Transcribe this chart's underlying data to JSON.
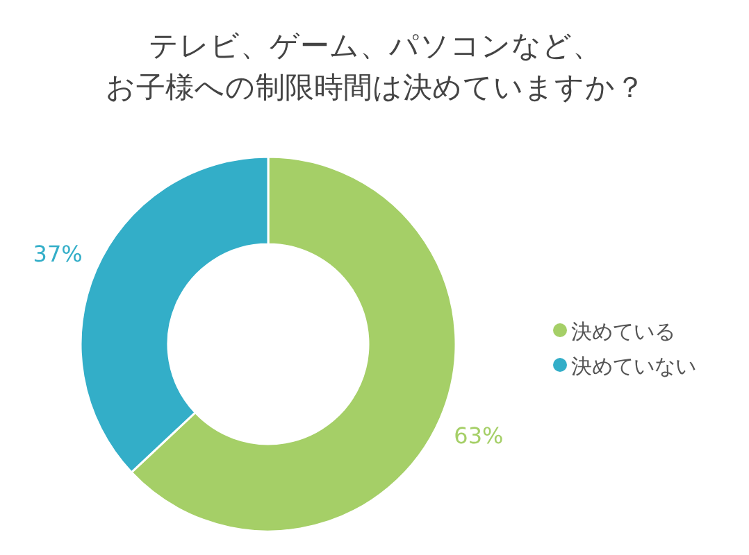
{
  "chart_data": {
    "type": "donut",
    "title": "テレビ、ゲーム、パソコンなど、お子様への制限時間は決めていますか？",
    "categories": [
      "決めている",
      "決めていない"
    ],
    "values": [
      63,
      37
    ],
    "colors": [
      "#a5cf67",
      "#33aec8"
    ],
    "value_labels": [
      "63%",
      "37%"
    ],
    "legend": "right"
  }
}
